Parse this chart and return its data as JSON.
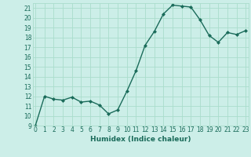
{
  "x": [
    0,
    1,
    2,
    3,
    4,
    5,
    6,
    7,
    8,
    9,
    10,
    11,
    12,
    13,
    14,
    15,
    16,
    17,
    18,
    19,
    20,
    21,
    22,
    23
  ],
  "y": [
    9,
    12,
    11.7,
    11.6,
    11.9,
    11.4,
    11.5,
    11.1,
    10.2,
    10.6,
    12.5,
    14.6,
    17.2,
    18.6,
    20.4,
    21.3,
    21.2,
    21.1,
    19.8,
    18.2,
    17.5,
    18.5,
    18.3,
    18.7
  ],
  "line_color": "#1a6b5a",
  "marker": "D",
  "marker_size": 2.0,
  "line_width": 1.0,
  "bg_color": "#cceee8",
  "grid_color": "#aaddcc",
  "tick_color": "#1a6b5a",
  "xlabel": "Humidex (Indice chaleur)",
  "xlabel_color": "#1a6b5a",
  "ylim": [
    9,
    21.5
  ],
  "xlim": [
    -0.3,
    23.3
  ],
  "yticks": [
    9,
    10,
    11,
    12,
    13,
    14,
    15,
    16,
    17,
    18,
    19,
    20,
    21
  ],
  "xticks": [
    0,
    1,
    2,
    3,
    4,
    5,
    6,
    7,
    8,
    9,
    10,
    11,
    12,
    13,
    14,
    15,
    16,
    17,
    18,
    19,
    20,
    21,
    22,
    23
  ],
  "xtick_labels": [
    "0",
    "1",
    "2",
    "3",
    "4",
    "5",
    "6",
    "7",
    "8",
    "9",
    "10",
    "11",
    "12",
    "13",
    "14",
    "15",
    "16",
    "17",
    "18",
    "19",
    "20",
    "21",
    "22",
    "23"
  ],
  "ytick_labels": [
    "9",
    "10",
    "11",
    "12",
    "13",
    "14",
    "15",
    "16",
    "17",
    "18",
    "19",
    "20",
    "21"
  ],
  "font_size": 5.5,
  "xlabel_fontsize": 6.5
}
